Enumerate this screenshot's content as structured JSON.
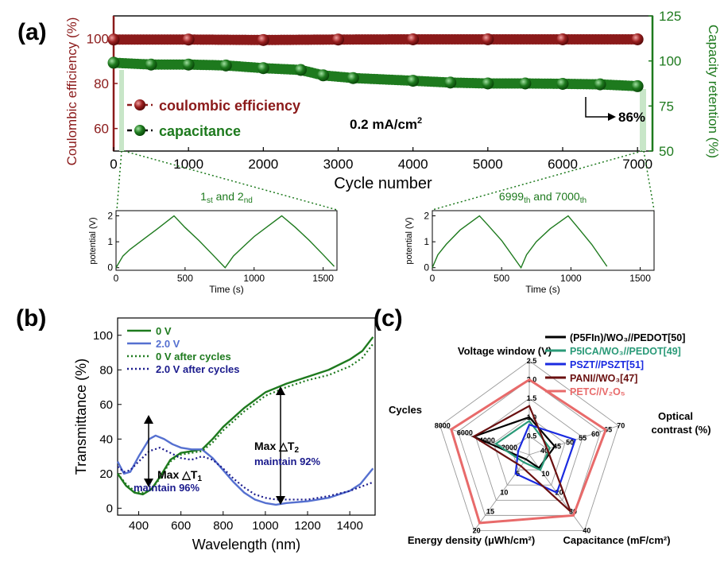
{
  "panel_labels": {
    "a": "(a)",
    "b": "(b)",
    "c": "(c)"
  },
  "colors": {
    "maroon": "#8b1a1a",
    "green": "#1e7a1e",
    "blue": "#5570d0",
    "navy": "#1a1a8c",
    "red": "#e86a6a",
    "teal": "#2a9a78",
    "bright_blue": "#1a2ae0",
    "dark_maroon": "#6a1010"
  },
  "chart_data": [
    {
      "id": "a_main",
      "type": "scatter",
      "xlabel": "Cycle number",
      "ylabel_left": "Coulombic efficiency (%)",
      "ylabel_right": "Capacity retention (%)",
      "xlim": [
        0,
        7200
      ],
      "ylim_left": [
        50,
        110
      ],
      "ylim_right": [
        50,
        125
      ],
      "xticks": [
        0,
        1000,
        2000,
        3000,
        4000,
        5000,
        6000,
        7000
      ],
      "yticks_left": [
        60,
        80,
        100
      ],
      "yticks_right": [
        50,
        75,
        100,
        125
      ],
      "legend": [
        "coulombic efficiency",
        "capacitance"
      ],
      "annotation_current": "0.2 mA/cm",
      "annotation_current_sup": "2",
      "annotation_retention": "86%",
      "series": [
        {
          "name": "coulombic efficiency",
          "axis": "left",
          "x": [
            0,
            1000,
            2000,
            3000,
            4000,
            5000,
            6000,
            7000
          ],
          "y": [
            99.5,
            99.5,
            99.3,
            99.5,
            99.6,
            99.6,
            99.6,
            99.6
          ]
        },
        {
          "name": "capacitance",
          "axis": "right",
          "x": [
            0,
            500,
            1000,
            1500,
            2000,
            2500,
            2800,
            3200,
            4000,
            4500,
            5000,
            5500,
            6000,
            6500,
            7000
          ],
          "y": [
            99,
            98,
            98,
            97.5,
            96,
            95,
            92,
            90.5,
            89,
            88,
            87.5,
            87.5,
            87.3,
            87,
            86
          ]
        }
      ]
    },
    {
      "id": "a_inset1",
      "type": "line",
      "title_main": "1",
      "title_sup1": "st",
      "title_mid": " and 2",
      "title_sup2": "nd",
      "xlabel": "Time (s)",
      "ylabel": "potential (V)",
      "xlim": [
        0,
        1600
      ],
      "ylim": [
        -0.1,
        2.2
      ],
      "xticks": [
        0,
        500,
        1000,
        1500
      ],
      "yticks": [
        0,
        1,
        2
      ],
      "x": [
        0,
        50,
        100,
        200,
        300,
        420,
        500,
        600,
        700,
        790,
        850,
        900,
        1000,
        1100,
        1200,
        1300,
        1400,
        1500,
        1580
      ],
      "y": [
        0,
        0.45,
        0.7,
        1.1,
        1.5,
        2.0,
        1.55,
        1.05,
        0.5,
        0.0,
        0.45,
        0.7,
        1.2,
        1.6,
        2.0,
        1.55,
        1.05,
        0.5,
        0.05
      ]
    },
    {
      "id": "a_inset2",
      "type": "line",
      "title_main": "6999",
      "title_sup1": "th",
      "title_mid": " and 7000",
      "title_sup2": "th",
      "xlabel": "Time (s)",
      "ylabel": "potential (V)",
      "xlim": [
        0,
        1600
      ],
      "ylim": [
        -0.1,
        2.2
      ],
      "xticks": [
        0,
        500,
        1000,
        1500
      ],
      "yticks": [
        0,
        1,
        2
      ],
      "x": [
        0,
        40,
        100,
        200,
        340,
        400,
        500,
        640,
        680,
        750,
        850,
        980,
        1050,
        1150,
        1260
      ],
      "y": [
        0,
        0.5,
        0.9,
        1.45,
        2.0,
        1.65,
        1.05,
        0.0,
        0.5,
        1.0,
        1.5,
        2.0,
        1.55,
        0.9,
        0.05
      ]
    },
    {
      "id": "b",
      "type": "line",
      "xlabel": "Wavelength (nm)",
      "ylabel": "Transmittance (%)",
      "xlim": [
        300,
        1520
      ],
      "ylim": [
        -4,
        110
      ],
      "xticks": [
        400,
        600,
        800,
        1000,
        1200,
        1400
      ],
      "yticks": [
        0,
        20,
        40,
        60,
        80,
        100
      ],
      "annotation_t1": "Max △T",
      "annotation_t1_sub": "1",
      "annotation_t1_keep": "maintain 96%",
      "annotation_t2": "Max △T",
      "annotation_t2_sub": "2",
      "annotation_t2_keep": "maintain 92%",
      "series": [
        {
          "name": "0 V",
          "style": "solid",
          "color": "green",
          "x": [
            300,
            340,
            380,
            420,
            460,
            500,
            550,
            600,
            650,
            700,
            750,
            800,
            900,
            1000,
            1060,
            1100,
            1200,
            1300,
            1400,
            1460,
            1510
          ],
          "y": [
            20,
            13,
            9,
            8,
            11,
            18,
            28,
            32,
            33,
            34,
            40,
            47,
            58,
            67,
            70,
            72,
            76,
            80,
            86,
            91,
            99
          ]
        },
        {
          "name": "2.0 V",
          "style": "solid",
          "color": "blue",
          "x": [
            300,
            330,
            360,
            400,
            450,
            480,
            520,
            560,
            600,
            650,
            700,
            750,
            800,
            850,
            900,
            950,
            1000,
            1050,
            1100,
            1200,
            1300,
            1400,
            1450,
            1510
          ],
          "y": [
            27,
            20,
            21,
            30,
            40,
            42,
            40,
            37,
            35,
            34,
            34,
            29,
            22,
            15,
            9,
            5,
            3,
            2,
            3,
            4,
            6,
            10,
            14,
            23
          ]
        },
        {
          "name": "0 V after cycles",
          "style": "dotted",
          "color": "green",
          "x": [
            300,
            340,
            380,
            420,
            460,
            500,
            550,
            600,
            650,
            700,
            750,
            800,
            900,
            1000,
            1060,
            1100,
            1200,
            1300,
            1400,
            1460,
            1510
          ],
          "y": [
            20,
            14,
            10,
            9,
            11,
            17,
            27,
            31,
            32,
            33,
            38,
            45,
            56,
            65,
            68,
            70,
            74,
            77,
            82,
            87,
            95
          ]
        },
        {
          "name": "2.0 V after cycles",
          "style": "dotted",
          "color": "navy",
          "x": [
            300,
            330,
            360,
            400,
            450,
            500,
            550,
            600,
            650,
            700,
            750,
            800,
            850,
            900,
            950,
            1000,
            1050,
            1100,
            1200,
            1300,
            1400,
            1510
          ],
          "y": [
            24,
            21,
            22,
            27,
            33,
            35,
            32,
            29,
            28,
            30,
            28,
            23,
            17,
            12,
            8,
            6,
            5,
            5,
            5,
            7,
            10,
            15
          ]
        }
      ]
    },
    {
      "id": "c",
      "type": "radar",
      "axes": [
        {
          "label": "Voltage window (V)",
          "ticks": [
            "0.5",
            "1.0",
            "1.5",
            "2.0",
            "2.5"
          ],
          "min": 0,
          "max": 2.5
        },
        {
          "label_line1": "Optical",
          "label_line2": "contrast (%)",
          "ticks": [
            "40",
            "45",
            "50",
            "55",
            "60",
            "65",
            "70"
          ],
          "min": 35,
          "max": 70
        },
        {
          "label": "Capacitance (mF/cm²)",
          "ticks": [
            "10",
            "20",
            "30",
            "40"
          ],
          "min": 0,
          "max": 40
        },
        {
          "label": "Energy density (μWh/cm²)",
          "ticks": [
            "5",
            "10",
            "15",
            "20"
          ],
          "min": 0,
          "max": 20
        },
        {
          "label": "Cycles",
          "ticks": [
            "2000",
            "4000",
            "6000",
            "8000"
          ],
          "min": 0,
          "max": 8000
        }
      ],
      "legend": [
        {
          "name": "(P5FIn)/WO₃//PEDOT[50]",
          "color": "#000000"
        },
        {
          "name": "P5ICA/WO₃//PEDOT[49]",
          "color": "#2a9a78"
        },
        {
          "name": "PSZT//PSZT[51]",
          "color": "#1a2ae0"
        },
        {
          "name": "PANI//WO₃[47]",
          "color": "#6a1010"
        },
        {
          "name": "PETC//V₂O₅",
          "color": "#e86a6a"
        }
      ],
      "series": [
        {
          "name": "(P5FIn)/WO3//PEDOT[50]",
          "values": [
            1.0,
            45,
            7,
            1.2,
            5000
          ]
        },
        {
          "name": "P5ICA/WO3//PEDOT[49]",
          "values": [
            0.9,
            43,
            8,
            2,
            3000
          ]
        },
        {
          "name": "PSZT//PSZT[51]",
          "values": [
            0.8,
            53,
            20,
            5,
            1000
          ]
        },
        {
          "name": "PANI//WO3[47]",
          "values": [
            1.3,
            42,
            30,
            3,
            5000
          ]
        },
        {
          "name": "PETC//V2O5",
          "values": [
            2.0,
            65,
            32,
            18,
            7000
          ]
        }
      ]
    }
  ]
}
